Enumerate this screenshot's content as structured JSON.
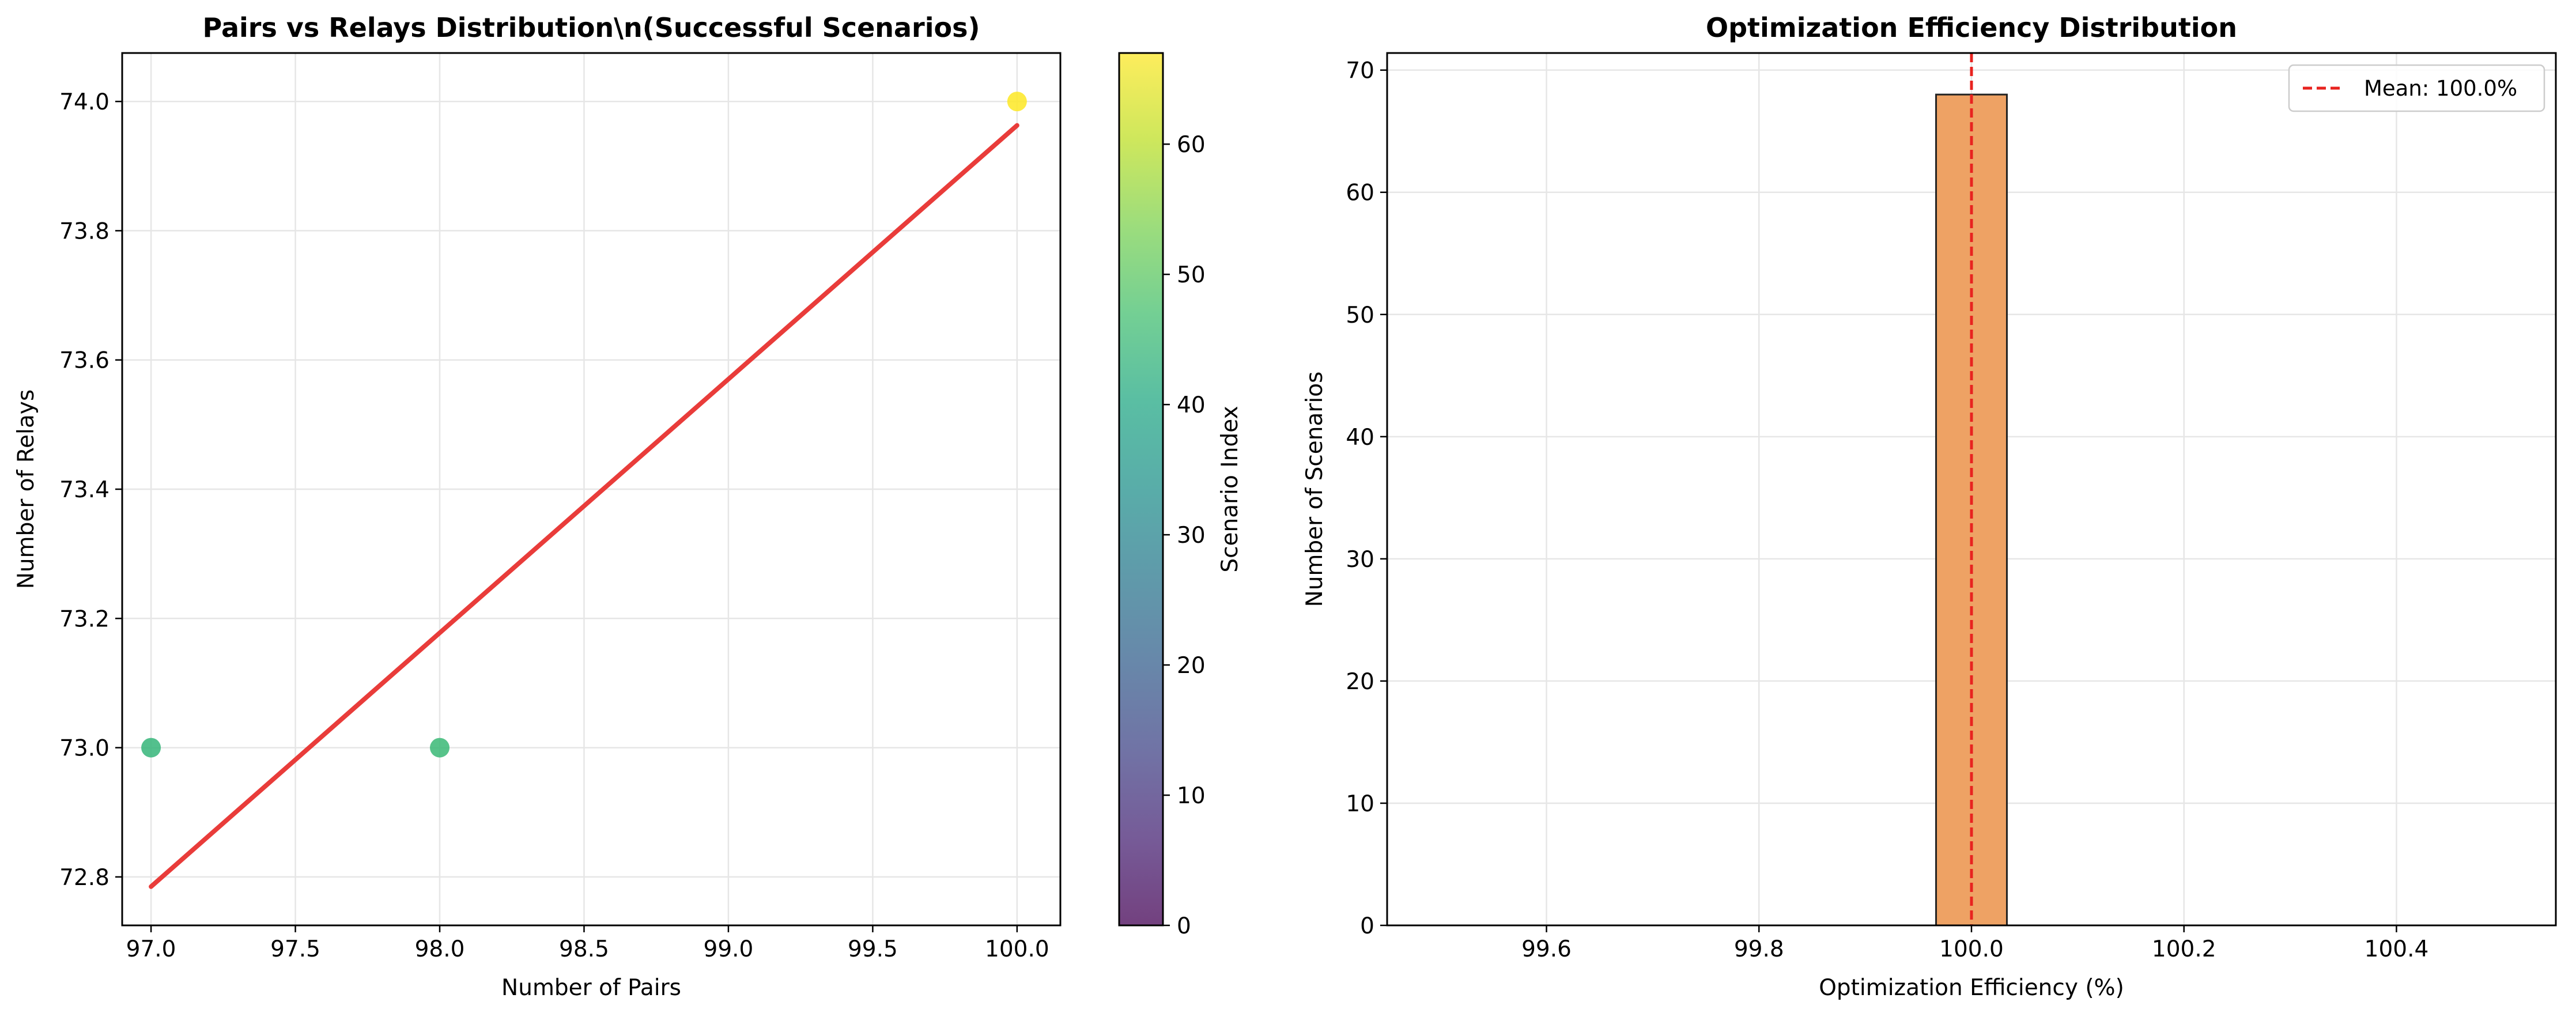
{
  "figure": {
    "background": "#ffffff"
  },
  "chart_data": [
    {
      "type": "scatter",
      "title": "Pairs vs Relays Distribution\\n(Successful Scenarios)",
      "xlabel": "Number of Pairs",
      "ylabel": "Number of Relays",
      "xlim": [
        96.9,
        100.15
      ],
      "ylim": [
        72.725,
        74.075
      ],
      "xticks": [
        97.0,
        97.5,
        98.0,
        98.5,
        99.0,
        99.5,
        100.0
      ],
      "xtick_labels": [
        "97.0",
        "97.5",
        "98.0",
        "98.5",
        "99.0",
        "99.5",
        "100.0"
      ],
      "yticks": [
        72.8,
        73.0,
        73.2,
        73.4,
        73.6,
        73.8,
        74.0
      ],
      "ytick_labels": [
        "72.8",
        "73.0",
        "73.2",
        "73.4",
        "73.6",
        "73.8",
        "74.0"
      ],
      "grid": true,
      "points": [
        {
          "x": 97.0,
          "y": 73.0,
          "scenario_index": 44
        },
        {
          "x": 98.0,
          "y": 73.0,
          "scenario_index": 45
        },
        {
          "x": 100.0,
          "y": 74.0,
          "scenario_index": 67
        }
      ],
      "trend_line": {
        "x": [
          97.0,
          100.0
        ],
        "y": [
          72.785,
          73.963
        ],
        "color": "#e8312f"
      },
      "colorbar": {
        "label": "Scenario Index",
        "colormap": "viridis",
        "range": [
          0,
          67
        ],
        "ticks": [
          0,
          10,
          20,
          30,
          40,
          50,
          60
        ],
        "tick_labels": [
          "0",
          "10",
          "20",
          "30",
          "40",
          "50",
          "60"
        ]
      }
    },
    {
      "type": "bar",
      "title": "Optimization Efficiency Distribution",
      "xlabel": "Optimization Efficiency (%)",
      "ylabel": "Number of Scenarios",
      "xlim": [
        99.45,
        100.55
      ],
      "ylim": [
        0,
        71.4
      ],
      "xticks": [
        99.6,
        99.8,
        100.0,
        100.2,
        100.4
      ],
      "xtick_labels": [
        "99.6",
        "99.8",
        "100.0",
        "100.2",
        "100.4"
      ],
      "yticks": [
        0,
        10,
        20,
        30,
        40,
        50,
        60,
        70
      ],
      "ytick_labels": [
        "0",
        "10",
        "20",
        "30",
        "40",
        "50",
        "60",
        "70"
      ],
      "grid": true,
      "bins": {
        "start": 99.5,
        "end": 100.5,
        "count": 15
      },
      "values": [
        0,
        0,
        0,
        0,
        0,
        0,
        0,
        68,
        0,
        0,
        0,
        0,
        0,
        0,
        0
      ],
      "bar_color": "#eea264",
      "mean": {
        "value": 100.0,
        "label": "Mean: 100.0%",
        "color": "#e8231f"
      },
      "legend": {
        "placement": "upper right",
        "entries": [
          "Mean: 100.0%"
        ]
      }
    }
  ]
}
